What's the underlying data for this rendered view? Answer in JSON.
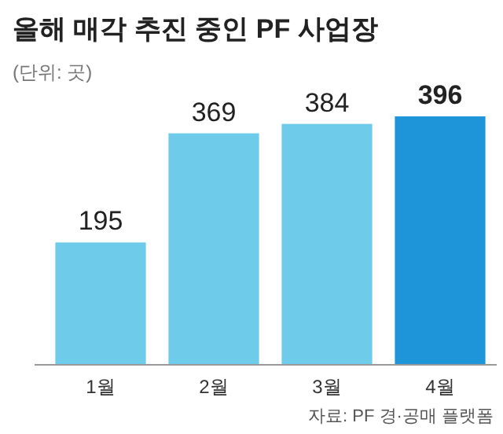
{
  "chart_data": {
    "type": "bar",
    "title": "올해 매각 추진 중인 PF 사업장",
    "subtitle": "(단위: 곳)",
    "categories": [
      "1월",
      "2월",
      "3월",
      "4월"
    ],
    "values": [
      195,
      369,
      384,
      396
    ],
    "colors": [
      "#6fcbea",
      "#6fcbea",
      "#6fcbea",
      "#1e95d8"
    ],
    "data_labels": true,
    "annotations": [
      "자료: PF 경·공매 플랫폼"
    ]
  }
}
